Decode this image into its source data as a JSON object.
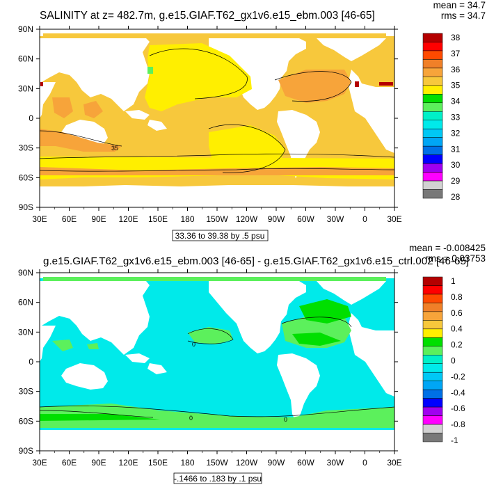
{
  "chart_data": [
    {
      "type": "heatmap",
      "title": "SALINITY at z= 482.7m, g.e15.GIAF.T62_gx1v6.e15_ebm.003 [46-65]",
      "stats": {
        "mean": "mean = 34.7",
        "rms": "rms = 34.7"
      },
      "contour_info": "33.36 to 39.38 by .5 psu",
      "x_ticks": [
        "30E",
        "60E",
        "90E",
        "120E",
        "150E",
        "180",
        "150W",
        "120W",
        "90W",
        "60W",
        "30W",
        "0",
        "30E"
      ],
      "y_ticks": [
        "90N",
        "60N",
        "30N",
        "0",
        "30S",
        "60S",
        "90S"
      ],
      "xlim": [
        30,
        390
      ],
      "ylim": [
        -90,
        90
      ],
      "colorbar_labels": [
        "38",
        "37",
        "36",
        "35",
        "34",
        "33",
        "32",
        "31",
        "30",
        "29",
        "28"
      ],
      "colorbar_colors": [
        "#b40000",
        "#ff0000",
        "#ff4a00",
        "#f08028",
        "#f7a43a",
        "#f7c83c",
        "#ffef00",
        "#00df00",
        "#5cf05c",
        "#00f0c8",
        "#00eaea",
        "#00c8f5",
        "#00a6f5",
        "#0070e6",
        "#0000ff",
        "#a000f0",
        "#ff00ff",
        "#d2d2d2",
        "#787878"
      ],
      "contour_labels": [
        "35"
      ]
    },
    {
      "type": "heatmap",
      "title": "g.e15.GIAF.T62_gx1v6.e15_ebm.003 [46-65] - g.e15.GIAF.T62_gx1v6.e15_ctrl.002 [46-65]",
      "stats": {
        "mean": "mean = -0.008425",
        "rms": "rms = 0.03753"
      },
      "contour_info": "-.1466 to .183 by .1 psu",
      "x_ticks": [
        "30E",
        "60E",
        "90E",
        "120E",
        "150E",
        "180",
        "150W",
        "120W",
        "90W",
        "60W",
        "30W",
        "0",
        "30E"
      ],
      "y_ticks": [
        "90N",
        "60N",
        "30N",
        "0",
        "30S",
        "60S",
        "90S"
      ],
      "xlim": [
        30,
        390
      ],
      "ylim": [
        -90,
        90
      ],
      "colorbar_labels": [
        "1",
        "0.8",
        "0.6",
        "0.4",
        "0.2",
        "0",
        "-0.2",
        "-0.4",
        "-0.6",
        "-0.8",
        "-1"
      ],
      "colorbar_colors": [
        "#b40000",
        "#ff0000",
        "#ff4a00",
        "#f08028",
        "#f7a43a",
        "#f7c83c",
        "#ffef00",
        "#00df00",
        "#5cf05c",
        "#00f0c8",
        "#00eaea",
        "#00c8f5",
        "#00a6f5",
        "#0070e6",
        "#0000ff",
        "#a000f0",
        "#ff00ff",
        "#d2d2d2",
        "#787878"
      ],
      "contour_labels": [
        "0",
        "0",
        "0"
      ]
    }
  ]
}
